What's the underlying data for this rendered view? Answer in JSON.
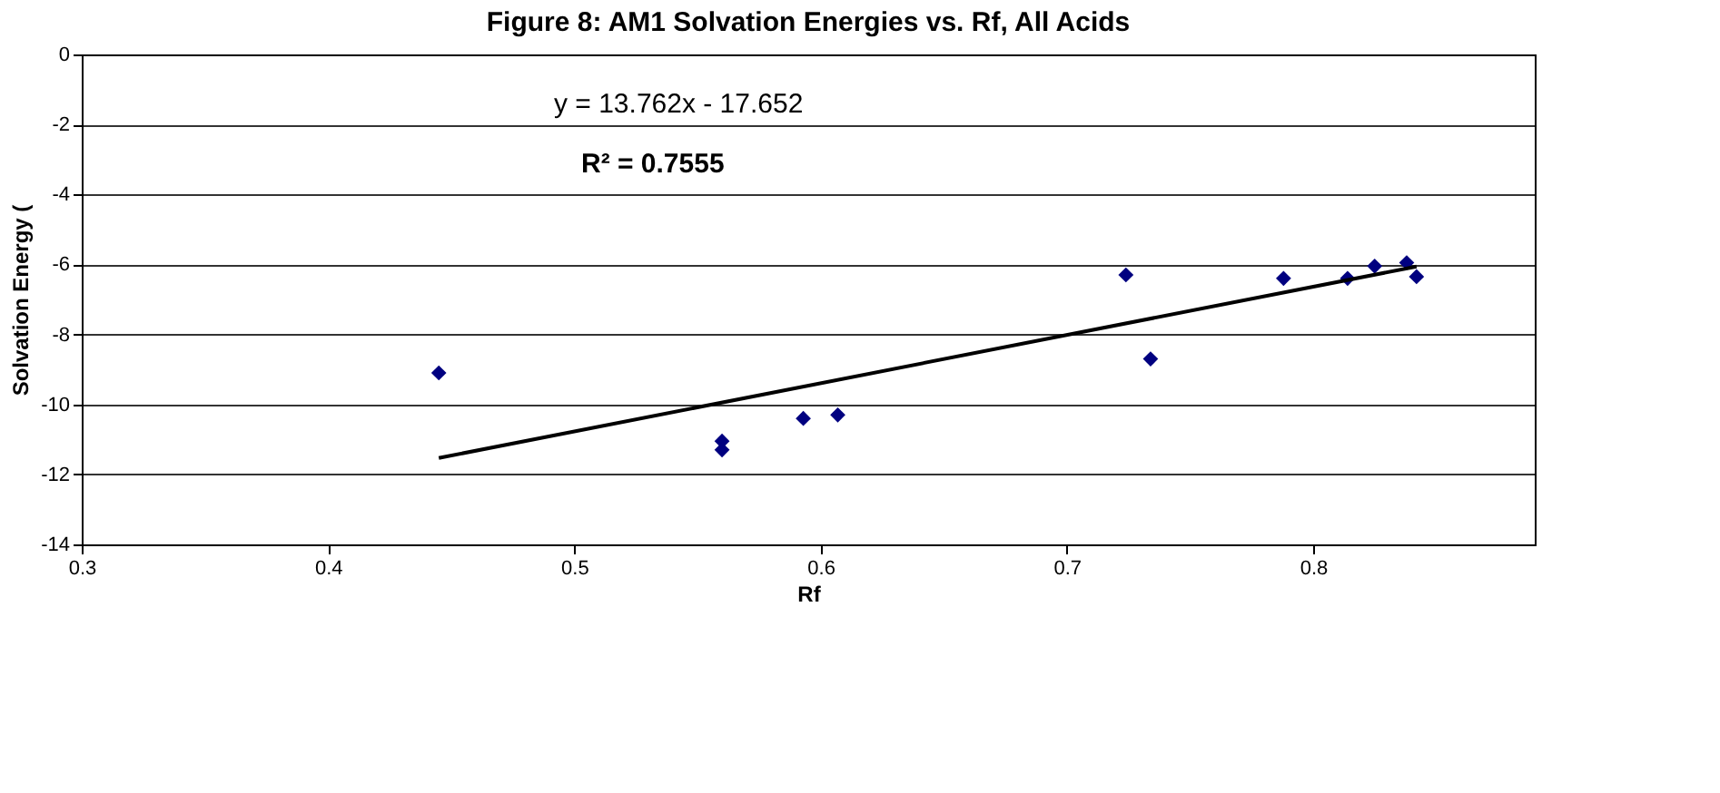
{
  "chart_data": {
    "type": "scatter",
    "title": "Figure 8:  AM1 Solvation Energies vs. Rf, All Acids",
    "xlabel": "Rf",
    "ylabel": "Solvation Energy (",
    "xlim": [
      0.3,
      0.89
    ],
    "xticks": [
      0.3,
      0.4,
      0.5,
      0.6,
      0.7,
      0.8
    ],
    "ylim": [
      -14,
      0
    ],
    "yticks": [
      -14,
      -12,
      -10,
      -8,
      -6,
      -4,
      -2,
      0
    ],
    "grid": "y",
    "series": [
      {
        "color": "#000080",
        "marker": "diamond",
        "x": [
          0.445,
          0.56,
          0.56,
          0.593,
          0.607,
          0.724,
          0.734,
          0.788,
          0.814,
          0.825,
          0.838,
          0.842
        ],
        "values": [
          -9.1,
          -11.05,
          -11.3,
          -10.4,
          -10.3,
          -6.3,
          -8.7,
          -6.4,
          -6.4,
          -6.05,
          -5.95,
          -6.35
        ]
      },
      {
        "type": "line",
        "color": "#000000",
        "line_style": "solid",
        "x": [
          0.445,
          0.842
        ],
        "values": [
          -11.53,
          -6.06
        ]
      }
    ],
    "annotations": [
      "y = 13.762x - 17.652",
      "R² = 0.7555"
    ]
  }
}
